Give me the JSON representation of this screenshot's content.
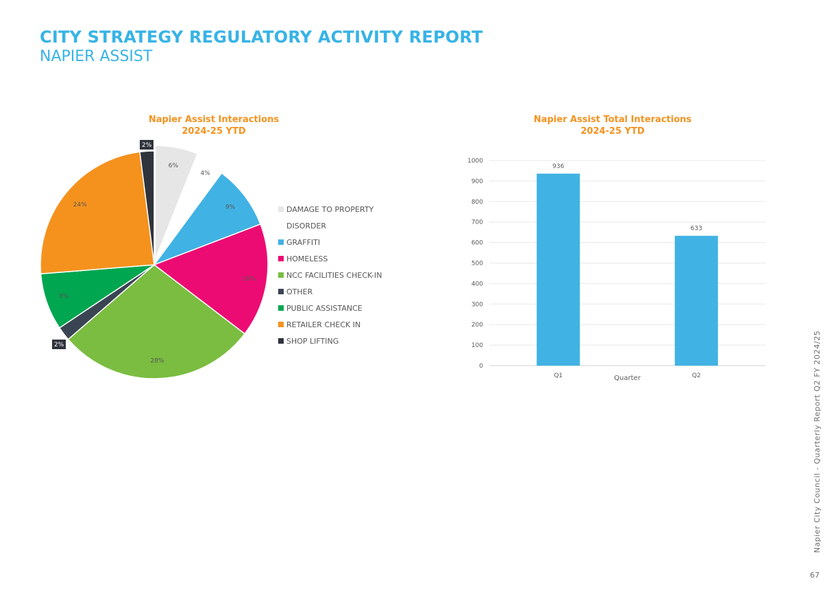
{
  "header": {
    "title": "CITY STRATEGY REGULATORY ACTIVITY REPORT",
    "subtitle": "NAPIER ASSIST"
  },
  "footer": {
    "text": "Napier City Council - Quarterly Report Q2 FY 2024/25",
    "page_number": "67"
  },
  "chart_data": [
    {
      "type": "pie",
      "title": "Napier Assist Interactions",
      "subtitle": "2024-25 YTD",
      "legend_placement": "right",
      "categories": [
        "DAMAGE TO PROPERTY",
        "DISORDER",
        "GRAFFITI",
        "HOMELESS",
        "NCC FACILITIES CHECK-IN",
        "OTHER",
        "PUBLIC ASSISTANCE",
        "RETAILER CHECK IN",
        "SHOP LIFTING"
      ],
      "values": [
        6,
        4,
        9,
        16,
        28,
        2,
        8,
        24,
        2
      ],
      "labels": [
        "6%",
        "4%",
        "9%",
        "16%",
        "28%",
        "2%",
        "8%",
        "24%",
        "2%"
      ],
      "colors": [
        "#e6e6e6",
        "#ffffff",
        "#41b2e4",
        "#ec0b73",
        "#7abd41",
        "#3a4453",
        "#00a650",
        "#f5921e",
        "#2f333b"
      ]
    },
    {
      "type": "bar",
      "title": "Napier Assist Total Interactions",
      "subtitle": "2024-25 YTD",
      "categories": [
        "Q1",
        "Q2"
      ],
      "values": [
        936,
        633
      ],
      "value_labels": [
        "936",
        "633"
      ],
      "xlabel": "Quarter",
      "ylabel": "",
      "ylim": [
        0,
        1000
      ],
      "yticks": [
        "0",
        "100",
        "200",
        "300",
        "400",
        "500",
        "600",
        "700",
        "800",
        "900",
        "1000"
      ],
      "grid": true,
      "color": "#41b2e4"
    }
  ]
}
